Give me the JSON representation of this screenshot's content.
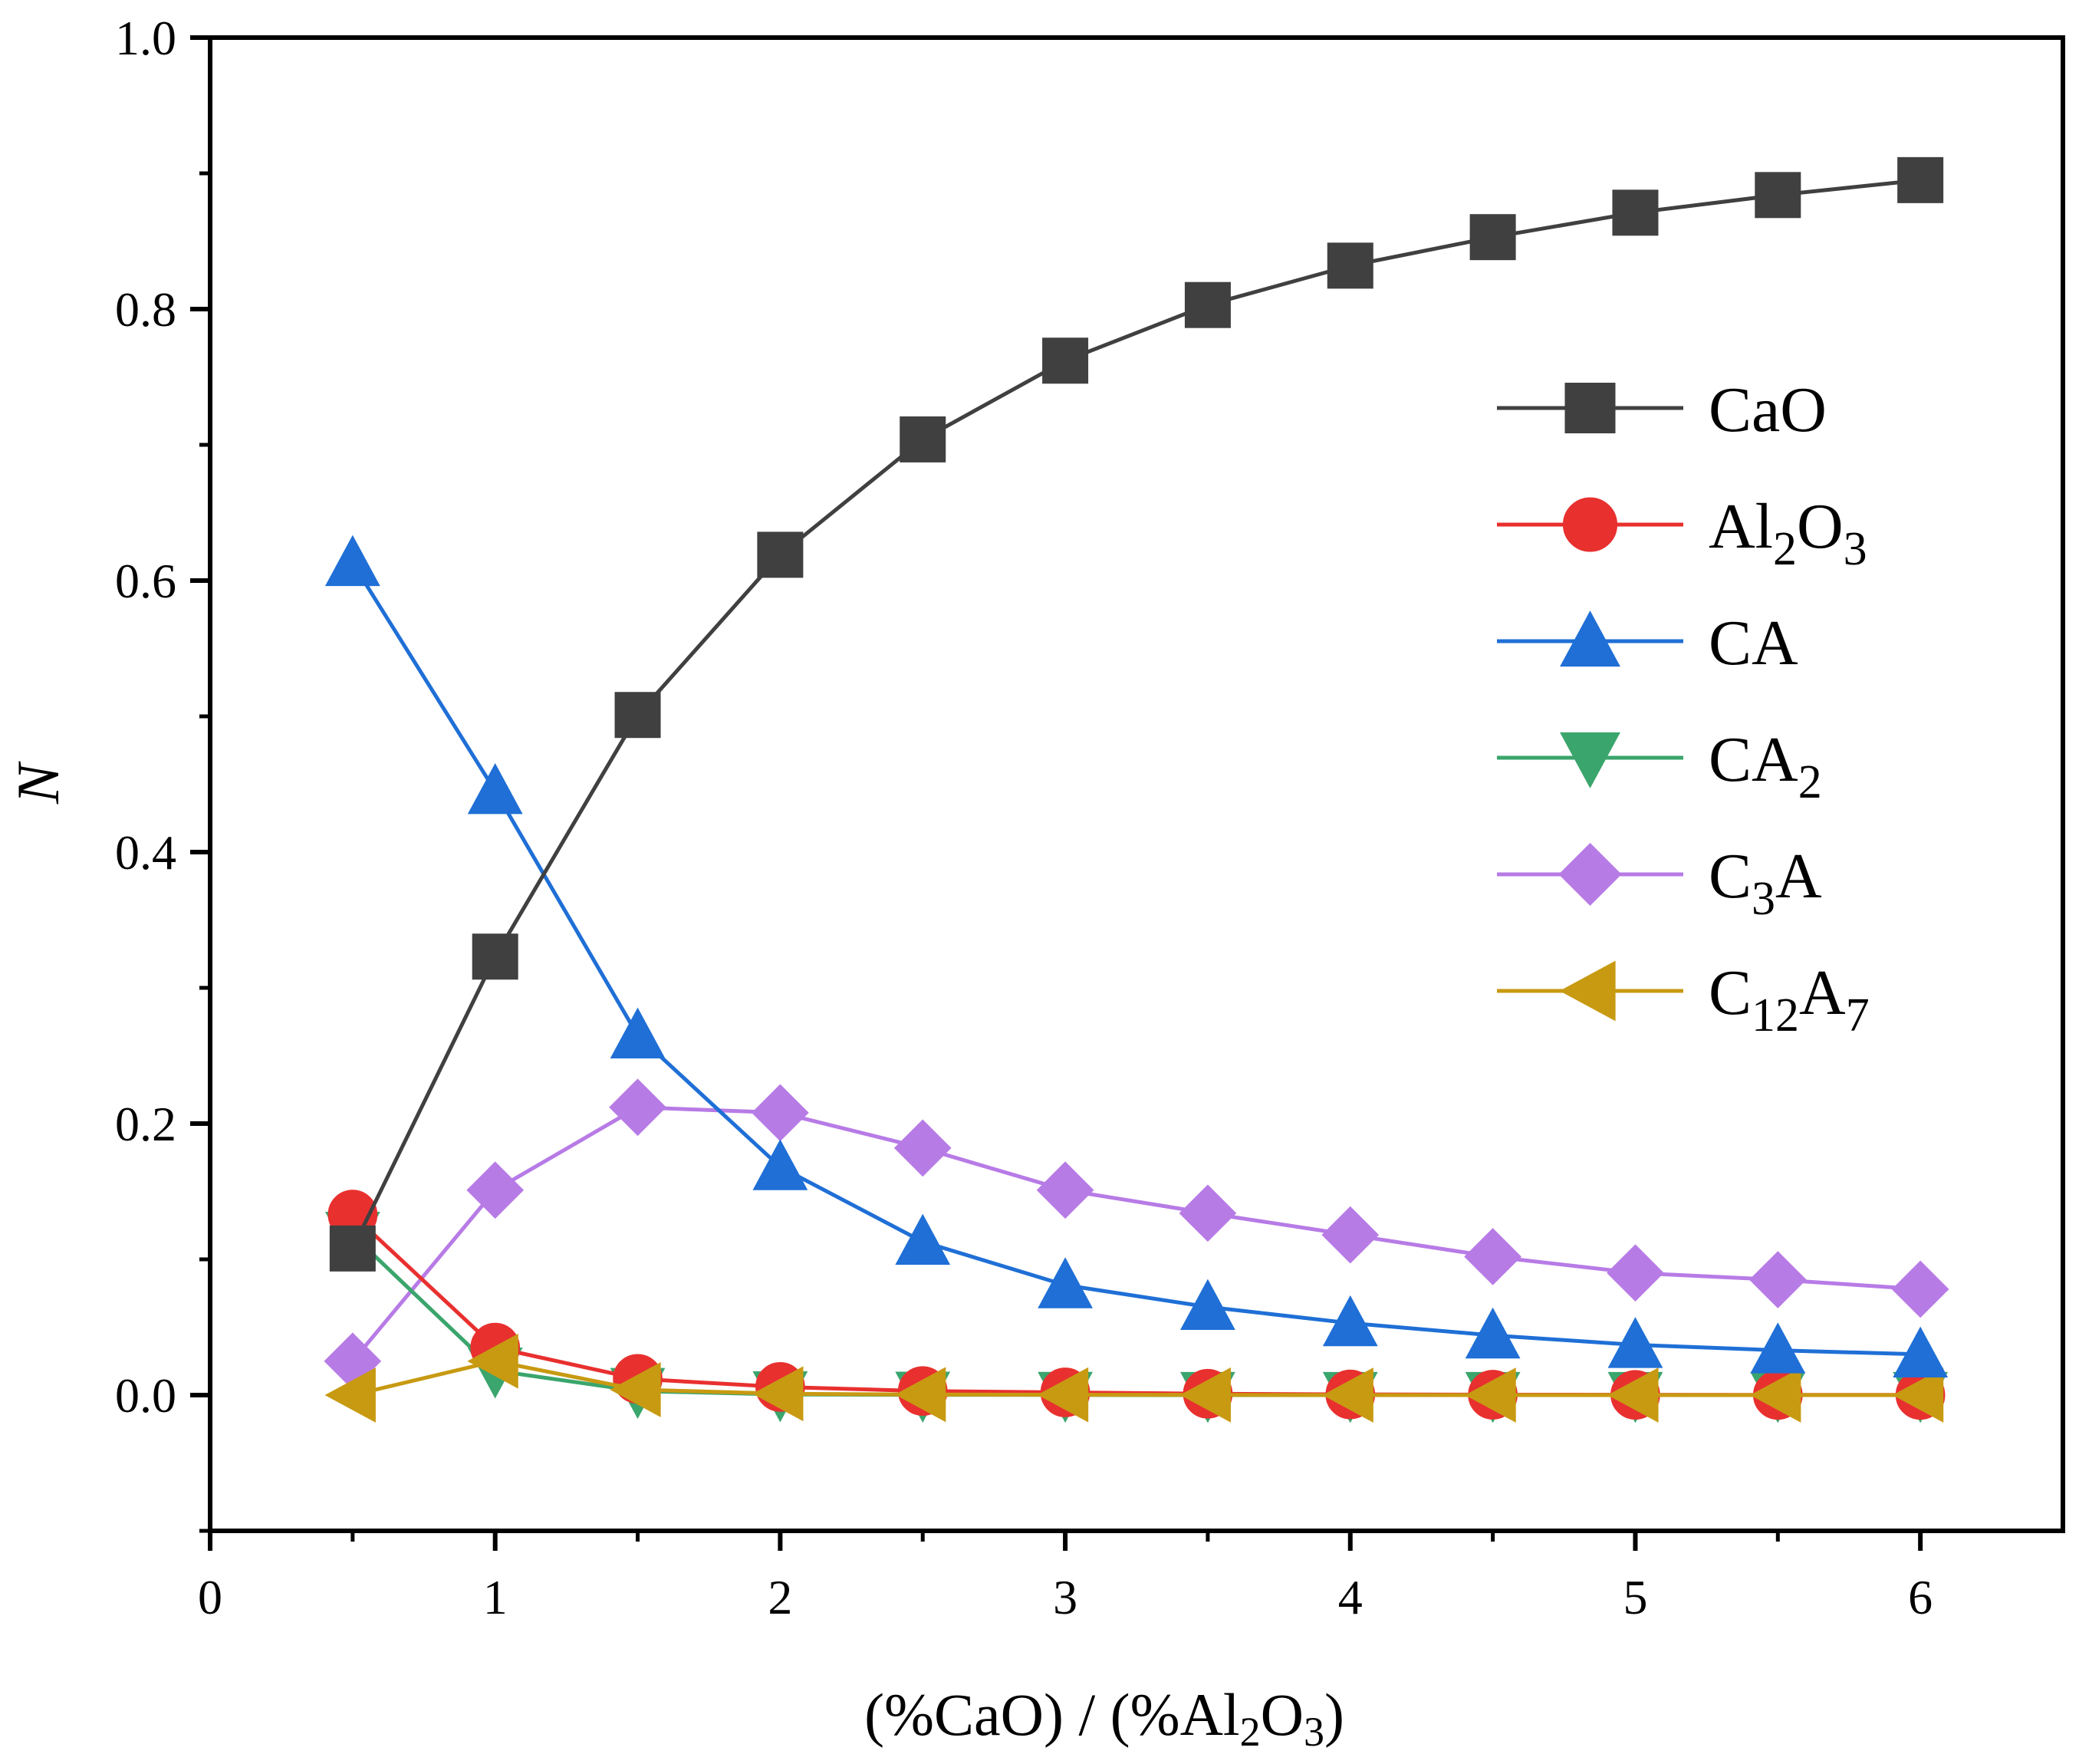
{
  "chart_data": {
    "type": "line",
    "title": "",
    "xlabel": "(%CaO) / (%Al2O3)",
    "xlabel_parts": {
      "pre": "(%CaO) / (%Al",
      "sub1": "2",
      "mid": "O",
      "sub2": "3",
      "post": ")"
    },
    "ylabel": "N",
    "xlim": [
      0,
      6.5
    ],
    "ylim": [
      -0.1,
      1.0
    ],
    "xticks": [
      0,
      1,
      2,
      3,
      4,
      5,
      6
    ],
    "yticks": [
      0.0,
      0.2,
      0.4,
      0.6,
      0.8,
      1.0
    ],
    "ytick_labels": [
      "0.0",
      "0.2",
      "0.4",
      "0.6",
      "0.8",
      "1.0"
    ],
    "grid": false,
    "legend_position": "right",
    "x": [
      0.5,
      1,
      1.5,
      2,
      2.5,
      3,
      3.5,
      4,
      4.5,
      5,
      5.5,
      6
    ],
    "series": [
      {
        "name": "CaO",
        "label_base": "CaO",
        "label_sub": "",
        "label_tail": "",
        "label_sub2": "",
        "marker": "square",
        "color": "#404040",
        "values": [
          0.108,
          0.323,
          0.501,
          0.619,
          0.704,
          0.762,
          0.803,
          0.832,
          0.853,
          0.871,
          0.884,
          0.895
        ]
      },
      {
        "name": "Al2O3",
        "label_base": "Al",
        "label_sub": "2",
        "label_tail": "O",
        "label_sub2": "3",
        "marker": "circle",
        "color": "#e8302f",
        "values": [
          0.133,
          0.035,
          0.012,
          0.006,
          0.003,
          0.002,
          0.001,
          0.0005,
          0.0003,
          0.0002,
          0.0001,
          0.0001
        ]
      },
      {
        "name": "CA",
        "label_base": "CA",
        "label_sub": "",
        "label_tail": "",
        "label_sub2": "",
        "marker": "triangle-up",
        "color": "#1f6fd6",
        "values": [
          0.613,
          0.445,
          0.265,
          0.168,
          0.113,
          0.081,
          0.065,
          0.053,
          0.044,
          0.037,
          0.033,
          0.03
        ]
      },
      {
        "name": "CA2",
        "label_base": "CA",
        "label_sub": "2",
        "label_tail": "",
        "label_sub2": "",
        "marker": "triangle-down",
        "color": "#3aa56c",
        "values": [
          0.118,
          0.018,
          0.003,
          0.0005,
          0.0002,
          0.0001,
          0.0,
          0.0,
          0.0,
          0.0,
          0.0,
          0.0
        ]
      },
      {
        "name": "C3A",
        "label_base": "C",
        "label_sub": "3",
        "label_tail": "A",
        "label_sub2": "",
        "marker": "diamond",
        "color": "#b77be6",
        "values": [
          0.025,
          0.151,
          0.212,
          0.208,
          0.182,
          0.151,
          0.134,
          0.118,
          0.102,
          0.09,
          0.085,
          0.078
        ]
      },
      {
        "name": "C12A7",
        "label_base": "C",
        "label_sub": "12",
        "label_tail": "A",
        "label_sub2": "7",
        "marker": "triangle-left",
        "color": "#c89a12",
        "values": [
          0.0,
          0.025,
          0.004,
          0.001,
          0.0004,
          0.0002,
          0.0001,
          0.0,
          0.0,
          0.0,
          0.0,
          0.0
        ]
      }
    ]
  }
}
